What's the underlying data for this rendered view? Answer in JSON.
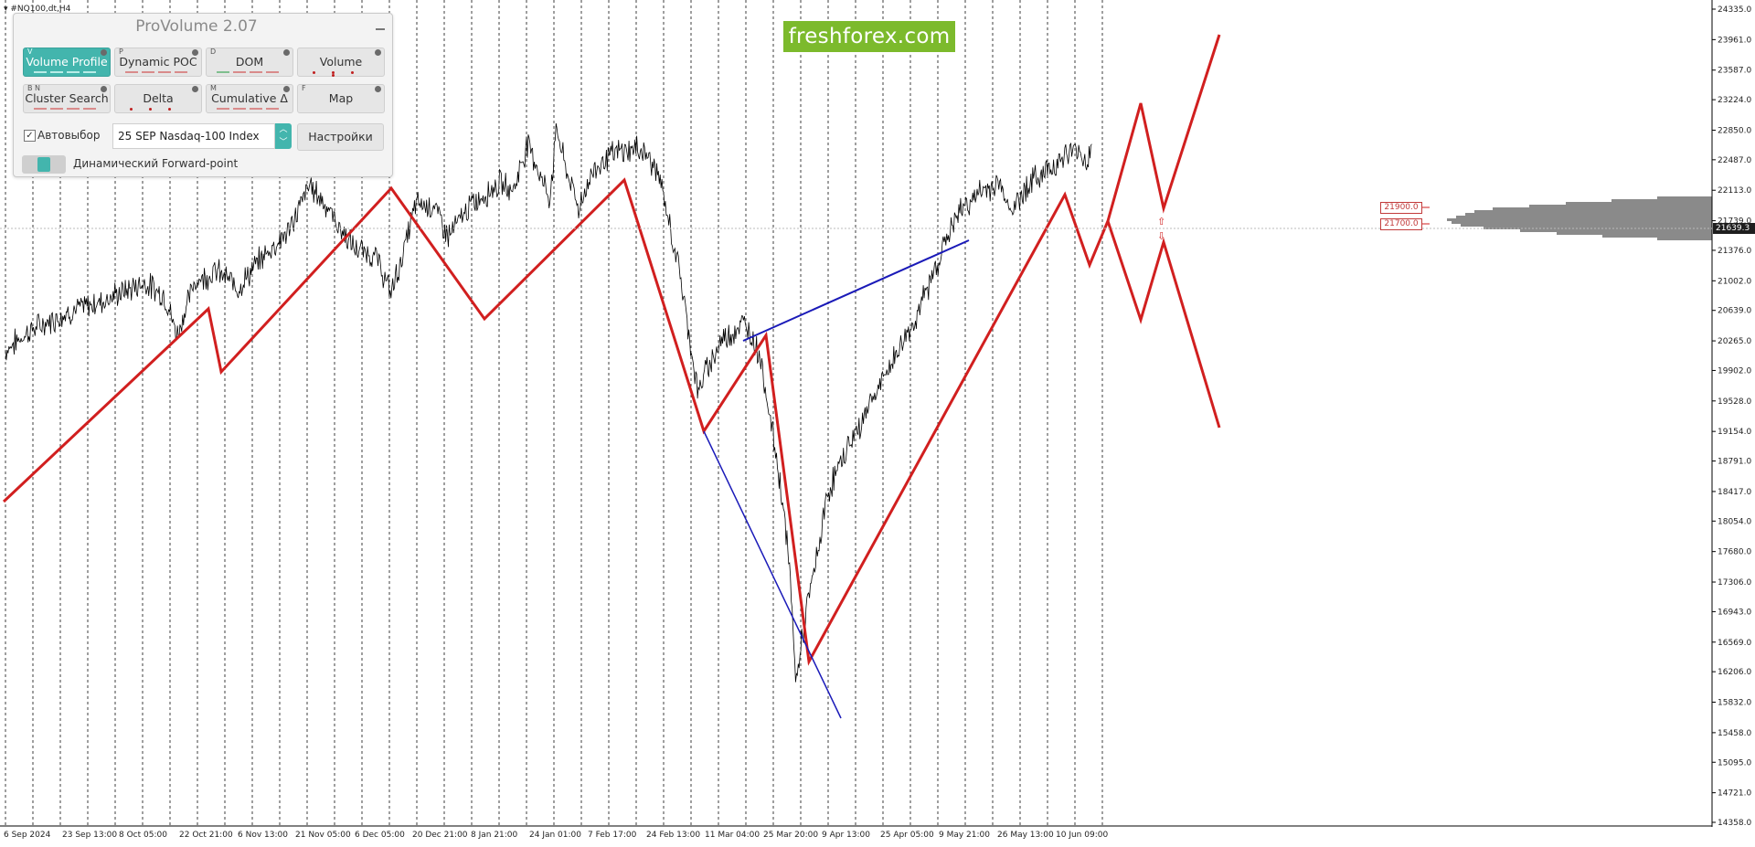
{
  "chart": {
    "symbol_header": "#NQ100,dt,H4",
    "last_price": "21639.3",
    "price_axis_labels": [
      "24335.0",
      "23961.0",
      "23587.0",
      "23224.0",
      "22850.0",
      "22487.0",
      "22113.0",
      "21739.0",
      "21376.0",
      "21002.0",
      "20639.0",
      "20265.0",
      "19902.0",
      "19528.0",
      "19154.0",
      "18791.0",
      "18417.0",
      "18054.0",
      "17680.0",
      "17306.0",
      "16943.0",
      "16569.0",
      "16206.0",
      "15832.0",
      "15458.0",
      "15095.0",
      "14721.0",
      "14358.0"
    ],
    "time_axis_labels": [
      "6 Sep 2024",
      "23 Sep 13:00",
      "8 Oct 05:00",
      "22 Oct 21:00",
      "6 Nov 13:00",
      "21 Nov 05:00",
      "6 Dec 05:00",
      "20 Dec 21:00",
      "8 Jan 21:00",
      "24 Jan 01:00",
      "7 Feb 17:00",
      "24 Feb 13:00",
      "11 Mar 04:00",
      "25 Mar 20:00",
      "9 Apr 13:00",
      "25 Apr 05:00",
      "9 May 21:00",
      "26 May 13:00",
      "10 Jun 09:00"
    ],
    "price_levels": [
      "21900.0",
      "21700.0"
    ],
    "colors": {
      "price_line": "#000000",
      "wave_line": "#d11f1f",
      "trend_line": "#1a1ab8",
      "grid": "#000000",
      "volume_profile": "#8a8a8a"
    }
  },
  "logo": {
    "text": "freshforex.com"
  },
  "panel": {
    "title": "ProVolume 2.07",
    "buttons": [
      {
        "key": "V",
        "label": "Volume Profile",
        "active": true
      },
      {
        "key": "P",
        "label": "Dynamic POC",
        "active": false
      },
      {
        "key": "D",
        "label": "DOM",
        "active": false
      },
      {
        "key": "",
        "label": "Volume",
        "active": false
      },
      {
        "key": "B   N",
        "label": "Cluster Search",
        "active": false
      },
      {
        "key": "",
        "label": "Delta",
        "active": false
      },
      {
        "key": "M",
        "label": "Cumulative Δ",
        "active": false
      },
      {
        "key": "F",
        "label": "Map",
        "active": false
      }
    ],
    "autoselect_label": "Автовыбор",
    "autoselect_checked": true,
    "symbol_value": "25 SEP Nasdaq-100 Index",
    "settings_label": "Настройки",
    "forward_point_label": "Динамический Forward-point"
  }
}
